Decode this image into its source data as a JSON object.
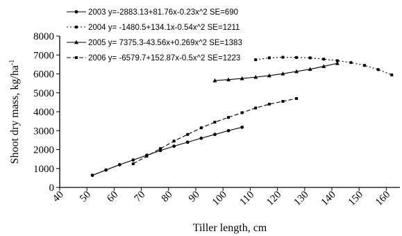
{
  "chart_data": {
    "type": "line",
    "xlabel": "Tiller length, cm",
    "ylabel": "Shoot dry mass, kg/ha",
    "ylabel_superscript": "-1",
    "xlim": [
      40,
      165
    ],
    "ylim": [
      0,
      8000
    ],
    "xticks": [
      40,
      50,
      60,
      70,
      80,
      90,
      100,
      110,
      120,
      130,
      140,
      150,
      160
    ],
    "yticks": [
      0,
      1000,
      2000,
      3000,
      4000,
      5000,
      6000,
      7000,
      8000
    ],
    "grid": false,
    "legend_position": "top-left",
    "series": [
      {
        "name": "2003 y=-2883.13+81.76x-0.23x^2 SE=690",
        "style": "solid",
        "marker": "circle",
        "x": [
          52,
          57,
          62,
          67,
          72,
          77,
          82,
          87,
          92,
          97,
          102,
          107
        ],
        "y": [
          640,
          920,
          1200,
          1450,
          1700,
          1950,
          2180,
          2390,
          2600,
          2800,
          3000,
          3180
        ]
      },
      {
        "name": "2004 y= -1480.5+134.1x-0.54x^2 SE=1211",
        "style": "dotted",
        "marker": "square",
        "x": [
          112,
          117,
          122,
          127,
          132,
          137,
          142,
          147,
          152,
          157,
          162
        ],
        "y": [
          6750,
          6850,
          6880,
          6870,
          6850,
          6780,
          6700,
          6600,
          6450,
          6230,
          5950
        ]
      },
      {
        "name": "2005 y= 7375.3-43.56x+0.269x^2 SE=1383",
        "style": "solid",
        "marker": "triangle",
        "x": [
          97,
          102,
          107,
          112,
          117,
          122,
          127,
          132,
          137,
          142
        ],
        "y": [
          5650,
          5700,
          5760,
          5830,
          5910,
          6010,
          6130,
          6250,
          6400,
          6560
        ]
      },
      {
        "name": "2006 y= -6579.7+152.87x-0.5x^2 SE=1223",
        "style": "dashed",
        "marker": "square",
        "x": [
          67,
          72,
          77,
          82,
          87,
          92,
          97,
          102,
          107,
          112,
          117,
          122,
          127
        ],
        "y": [
          1250,
          1650,
          2050,
          2450,
          2800,
          3150,
          3450,
          3700,
          3950,
          4200,
          4400,
          4550,
          4700
        ]
      }
    ]
  }
}
